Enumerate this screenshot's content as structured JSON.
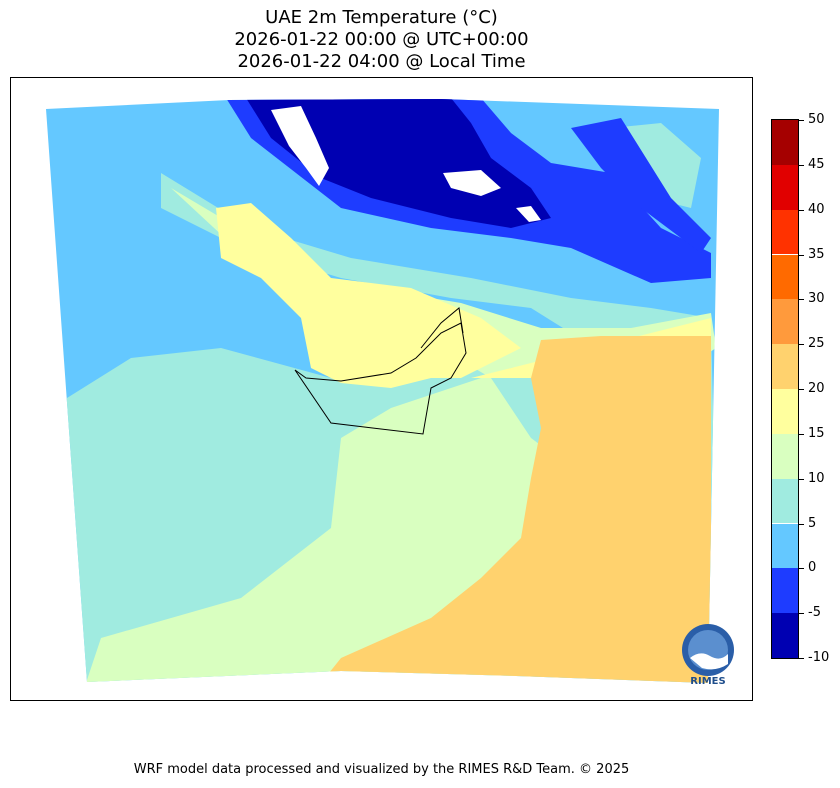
{
  "titles": {
    "line1": "UAE 2m Temperature (°C)",
    "line2": "2026-01-22 00:00 @ UTC+00:00",
    "line3": "2026-01-22 04:00 @ Local Time"
  },
  "colorbar": {
    "levels": [
      "-10",
      "-5",
      "0",
      "5",
      "10",
      "15",
      "20",
      "25",
      "30",
      "35",
      "40",
      "45",
      "50"
    ],
    "colors": [
      "#0000b2",
      "#1e3cff",
      "#64c8ff",
      "#a0ebe0",
      "#d9ffc0",
      "#ffff9e",
      "#ffd26e",
      "#ff9a3c",
      "#ff6a00",
      "#ff3200",
      "#e10000",
      "#a50000"
    ]
  },
  "logo": {
    "text": "RIMES",
    "icon": "rimes-globe-logo-icon"
  },
  "footer": "WRF model data processed and visualized by the RIMES R&D Team. © 2025"
}
